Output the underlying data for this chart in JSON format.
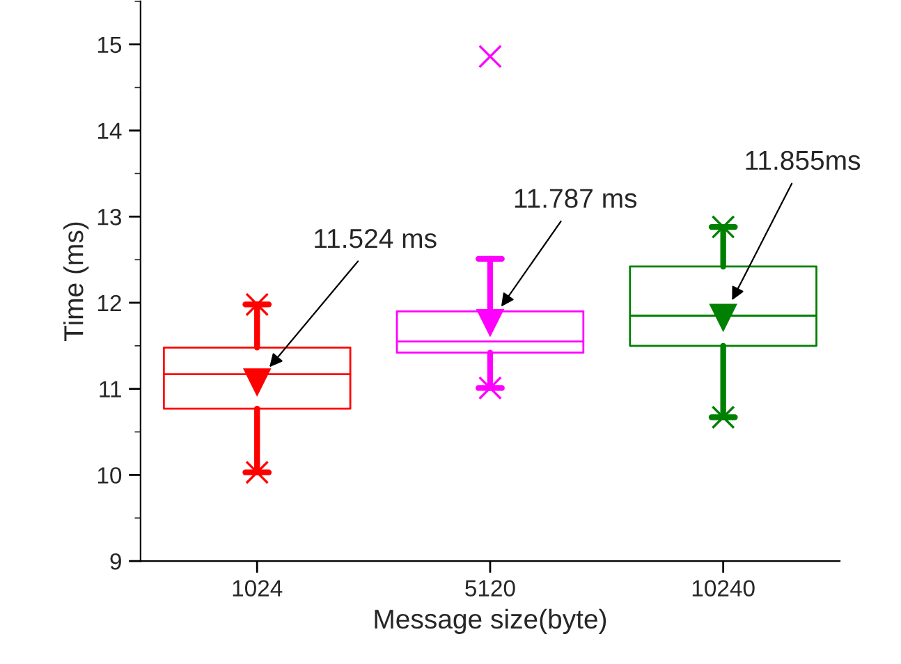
{
  "chart_data": {
    "type": "box",
    "xlabel": "Message size(byte)",
    "ylabel": "Time (ms)",
    "categories": [
      "1024",
      "5120",
      "10240"
    ],
    "colors": [
      "#ff0000",
      "#ff00ff",
      "#008000"
    ],
    "boxes": [
      {
        "low": 10.03,
        "q1": 10.77,
        "median": 11.17,
        "q3": 11.48,
        "high": 11.98,
        "mean": 11.08,
        "outliers": [
          10.03,
          11.98
        ]
      },
      {
        "low": 11.01,
        "q1": 11.42,
        "median": 11.55,
        "q3": 11.9,
        "high": 12.51,
        "mean": 11.77,
        "outliers": [
          11.01,
          14.86
        ]
      },
      {
        "low": 10.67,
        "q1": 11.5,
        "median": 11.85,
        "q3": 12.42,
        "high": 12.88,
        "mean": 11.83,
        "outliers": [
          10.67,
          12.88
        ]
      }
    ],
    "annotations": [
      "11.524 ms",
      "11.787 ms",
      "11.855ms"
    ],
    "ylim": [
      9,
      15.5
    ],
    "yticks": [
      9,
      10,
      11,
      12,
      13,
      14,
      15
    ],
    "grid": false,
    "legend": false
  }
}
